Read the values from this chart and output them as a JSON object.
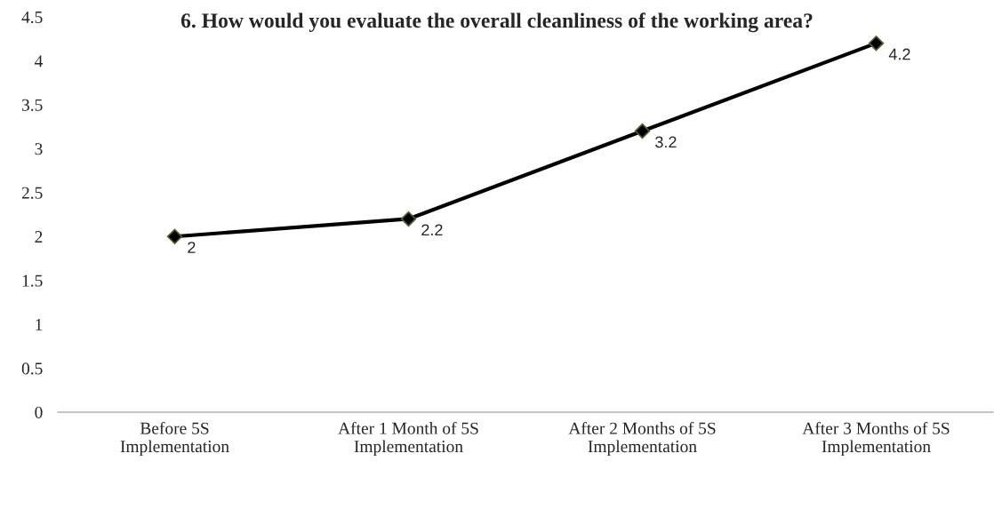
{
  "chart_data": {
    "type": "line",
    "title": "6. How would you evaluate the overall cleanliness of the working area?",
    "categories": [
      "Before 5S Implementation",
      "After 1 Month of 5S Implementation",
      "After 2 Months of 5S Implementation",
      "After 3 Months of 5S Implementation"
    ],
    "series": [
      {
        "color": "#000000",
        "values": [
          2,
          2.2,
          3.2,
          4.2
        ]
      }
    ],
    "ylim": [
      0,
      4.5
    ],
    "yticks": [
      {
        "value": 0,
        "label": "0"
      },
      {
        "value": 0.5,
        "label": "0.5"
      },
      {
        "value": 1,
        "label": "1"
      },
      {
        "value": 1.5,
        "label": "1.5"
      },
      {
        "value": 2,
        "label": "2"
      },
      {
        "value": 2.5,
        "label": "2.5"
      },
      {
        "value": 3,
        "label": "3"
      },
      {
        "value": 3.5,
        "label": "3.5"
      },
      {
        "value": 4,
        "label": "4"
      },
      {
        "value": 4.5,
        "label": "4.5"
      }
    ],
    "grid": false,
    "marker": "diamond",
    "line_style": "solid",
    "data_labels": true
  }
}
